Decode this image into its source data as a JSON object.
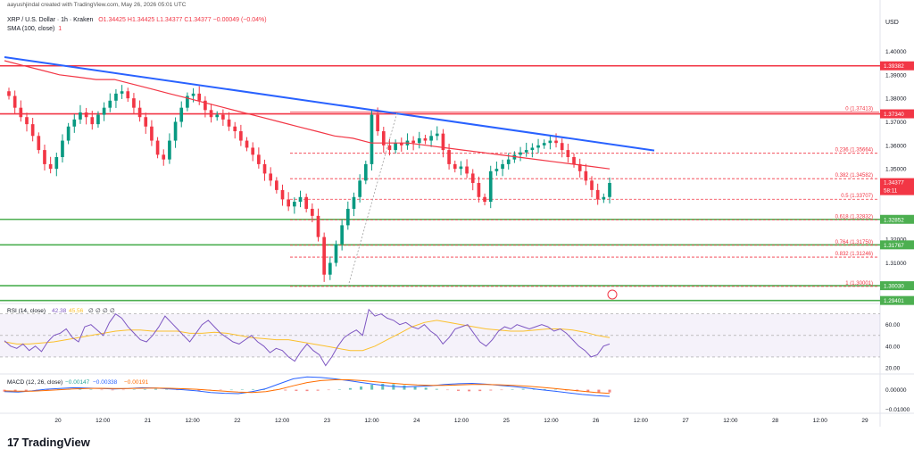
{
  "header": {
    "created_by": "aayushjindal created with TradingView.com, May 26, 2026 05:01 UTC",
    "symbol": "XRP / U.S. Dollar · 1h · Kraken",
    "ohlc": "O1.34425  H1.34425  L1.34377  C1.34377  −0.00049 (−0.04%)",
    "sma_label": "SMA (100, close)",
    "sma_value": "1"
  },
  "brand": {
    "name": "TradingView"
  },
  "colors": {
    "up": "#089981",
    "down": "#f23645",
    "trendline": "#2962ff",
    "sma": "#f23645",
    "resistance": "#f23645",
    "support": "#4caf50",
    "fib": "#f23645",
    "rsi": "#7e57c2",
    "rsi_ma": "#fbc02d",
    "macd": "#2962ff",
    "signal": "#ff6d00"
  },
  "chart_data": [
    {
      "type": "candlestick",
      "title": "XRP / U.S. Dollar · 1h · Kraken",
      "currency": "USD",
      "x_ticks": [
        "20",
        "12:00",
        "21",
        "12:00",
        "22",
        "12:00",
        "23",
        "12:00",
        "24",
        "12:00",
        "25",
        "12:00",
        "26",
        "12:00",
        "27",
        "12:00",
        "28",
        "12:00",
        "29"
      ],
      "y_ticks": [
        "1.40000",
        "1.39000",
        "1.38000",
        "1.37000",
        "1.36000",
        "1.35000",
        "1.32000",
        "1.31000"
      ],
      "ylim": [
        1.2935,
        1.4165
      ],
      "price_closes": [
        1.381,
        1.376,
        1.372,
        1.369,
        1.364,
        1.358,
        1.352,
        1.35,
        1.355,
        1.362,
        1.368,
        1.371,
        1.374,
        1.372,
        1.369,
        1.373,
        1.376,
        1.379,
        1.382,
        1.383,
        1.38,
        1.376,
        1.372,
        1.368,
        1.362,
        1.356,
        1.354,
        1.362,
        1.37,
        1.376,
        1.381,
        1.382,
        1.379,
        1.375,
        1.372,
        1.373,
        1.371,
        1.368,
        1.366,
        1.362,
        1.359,
        1.356,
        1.352,
        1.348,
        1.345,
        1.341,
        1.337,
        1.334,
        1.336,
        1.338,
        1.333,
        1.33,
        1.321,
        1.305,
        1.31,
        1.318,
        1.326,
        1.333,
        1.338,
        1.345,
        1.352,
        1.373,
        1.366,
        1.36,
        1.358,
        1.361,
        1.36,
        1.362,
        1.361,
        1.363,
        1.362,
        1.364,
        1.365,
        1.358,
        1.352,
        1.35,
        1.351,
        1.348,
        1.344,
        1.338,
        1.336,
        1.349,
        1.35,
        1.352,
        1.354,
        1.356,
        1.357,
        1.358,
        1.359,
        1.36,
        1.361,
        1.362,
        1.361,
        1.358,
        1.355,
        1.352,
        1.349,
        1.345,
        1.341,
        1.337,
        1.338,
        1.344
      ],
      "sma_label": "SMA (100, close)",
      "sma_values": [
        1.396,
        1.394,
        1.392,
        1.39,
        1.389,
        1.388,
        1.388,
        1.386,
        1.384,
        1.382,
        1.38,
        1.378,
        1.376,
        1.374,
        1.372,
        1.37,
        1.368,
        1.366,
        1.364,
        1.363,
        1.361,
        1.361,
        1.361,
        1.36,
        1.359,
        1.358,
        1.357,
        1.356,
        1.355,
        1.354,
        1.353,
        1.352,
        1.351,
        1.35
      ],
      "trendline_label": "",
      "horizontal_levels": [
        {
          "label": "1.39382",
          "value": 1.39382,
          "kind": "resistance"
        },
        {
          "label": "1.37340",
          "value": 1.3734,
          "kind": "resistance"
        },
        {
          "label": "1.32852",
          "value": 1.32852,
          "kind": "support"
        },
        {
          "label": "1.31767",
          "value": 1.31767,
          "kind": "support"
        },
        {
          "label": "1.30030",
          "value": 1.3003,
          "kind": "support"
        },
        {
          "label": "1.29401",
          "value": 1.29401,
          "kind": "support"
        }
      ],
      "fib_levels": [
        {
          "label": "0 (1.37413)",
          "value": 1.37413
        },
        {
          "label": "0.236 (1.35664)",
          "value": 1.35664
        },
        {
          "label": "0.382 (1.34582)",
          "value": 1.34582
        },
        {
          "label": "0.5 (1.33707)",
          "value": 1.33707
        },
        {
          "label": "0.618 (1.32832)",
          "value": 1.32832
        },
        {
          "label": "0.764 (1.31750)",
          "value": 1.3175
        },
        {
          "label": "0.832 (1.31246)",
          "value": 1.31246
        },
        {
          "label": "1 (1.30001)",
          "value": 1.30001
        }
      ],
      "current_price": {
        "label": "1.34377",
        "countdown": "58:11",
        "value": 1.34377
      }
    },
    {
      "type": "line",
      "title": "RSI (14, close)",
      "header_values": [
        "42.38",
        "45.56"
      ],
      "header_placeholders": [
        "∅",
        "∅",
        "∅",
        "∅"
      ],
      "y_ticks": [
        "60.00",
        "40.00",
        "20.00"
      ],
      "ylim": [
        15,
        78
      ],
      "series": [
        {
          "name": "RSI",
          "values": [
            45,
            40,
            38,
            42,
            36,
            40,
            35,
            44,
            50,
            52,
            56,
            48,
            44,
            58,
            60,
            55,
            50,
            62,
            70,
            66,
            58,
            52,
            46,
            44,
            50,
            58,
            68,
            62,
            56,
            50,
            44,
            52,
            60,
            64,
            58,
            52,
            48,
            44,
            42,
            46,
            50,
            44,
            40,
            34,
            38,
            36,
            30,
            26,
            35,
            42,
            36,
            32,
            22,
            30,
            40,
            48,
            52,
            55,
            50,
            74,
            68,
            70,
            66,
            64,
            60,
            62,
            58,
            56,
            60,
            54,
            50,
            42,
            48,
            56,
            58,
            60,
            52,
            44,
            40,
            46,
            54,
            58,
            56,
            60,
            58,
            56,
            58,
            60,
            58,
            54,
            56,
            52,
            46,
            40,
            36,
            30,
            32,
            40,
            42
          ]
        },
        {
          "name": "RSI MA",
          "values": [
            44,
            42,
            42,
            43,
            44,
            46,
            48,
            50,
            52,
            54,
            55,
            55,
            54,
            54,
            54,
            52,
            52,
            53,
            52,
            50,
            48,
            47,
            46,
            46,
            44,
            42,
            40,
            38,
            36,
            36,
            40,
            46,
            52,
            58,
            62,
            64,
            62,
            60,
            58,
            56,
            55,
            54,
            54,
            55,
            56,
            56,
            55,
            53,
            50,
            48
          ]
        }
      ]
    },
    {
      "type": "bar",
      "title": "MACD (12, 26, close)",
      "header_values": [
        "−0.00147",
        "−0.00338",
        "−0.00191"
      ],
      "y_ticks": [
        "0.00000",
        "−0.01000"
      ],
      "ylim": [
        -0.0115,
        0.0075
      ],
      "histogram": [
        -0.001,
        -0.0012,
        -0.0009,
        -0.0006,
        -0.0002,
        0.0002,
        0.0004,
        0.0003,
        0.0001,
        -0.0001,
        -0.0003,
        -0.0002,
        0.0001,
        0.0003,
        0.0004,
        0.0002,
        -0.0001,
        -0.0003,
        -0.0005,
        -0.0004,
        -0.0002,
        0.0,
        0.0002,
        0.0003,
        0.0001,
        -0.0002,
        -0.0004,
        -0.0006,
        -0.0007,
        -0.0005,
        -0.0002,
        0.0002,
        0.0008,
        0.0016,
        0.0025,
        0.003,
        0.0028,
        0.0022,
        0.0016,
        0.001,
        0.0004,
        -0.0002,
        -0.0006,
        -0.0008,
        -0.0007,
        -0.0004,
        -0.0001,
        0.0002,
        0.0004,
        0.0005,
        0.0003,
        0.0,
        -0.0004,
        -0.0008,
        -0.0012,
        -0.0014,
        -0.0014
      ],
      "series": [
        {
          "name": "MACD",
          "values": [
            -0.001,
            -0.0012,
            -0.0006,
            0.0002,
            0.0006,
            0.001,
            0.0008,
            0.0006,
            0.0004,
            0.0006,
            0.001,
            0.0008,
            0.0004,
            0.0,
            -0.0006,
            -0.0014,
            -0.0018,
            -0.002,
            -0.001,
            0.0005,
            0.003,
            0.0055,
            0.0065,
            0.0062,
            0.0055,
            0.0046,
            0.0036,
            0.0026,
            0.0018,
            0.0014,
            0.0016,
            0.002,
            0.0026,
            0.003,
            0.0032,
            0.0028,
            0.0022,
            0.0016,
            0.0008,
            0.0,
            -0.0008,
            -0.0016,
            -0.0024,
            -0.003,
            -0.0034
          ]
        },
        {
          "name": "Signal",
          "values": [
            -0.0006,
            -0.0008,
            -0.0008,
            -0.0004,
            0.0,
            0.0004,
            0.0006,
            0.0007,
            0.0006,
            0.0006,
            0.0007,
            0.0008,
            0.0007,
            0.0005,
            0.0002,
            -0.0003,
            -0.0008,
            -0.0012,
            -0.0014,
            -0.001,
            0.0002,
            0.002,
            0.0036,
            0.0046,
            0.005,
            0.005,
            0.0046,
            0.004,
            0.0034,
            0.0028,
            0.0024,
            0.0022,
            0.0022,
            0.0024,
            0.0026,
            0.0026,
            0.0025,
            0.0022,
            0.0018,
            0.0012,
            0.0006,
            -0.0001,
            -0.0008,
            -0.0014,
            -0.0019
          ]
        }
      ]
    }
  ]
}
